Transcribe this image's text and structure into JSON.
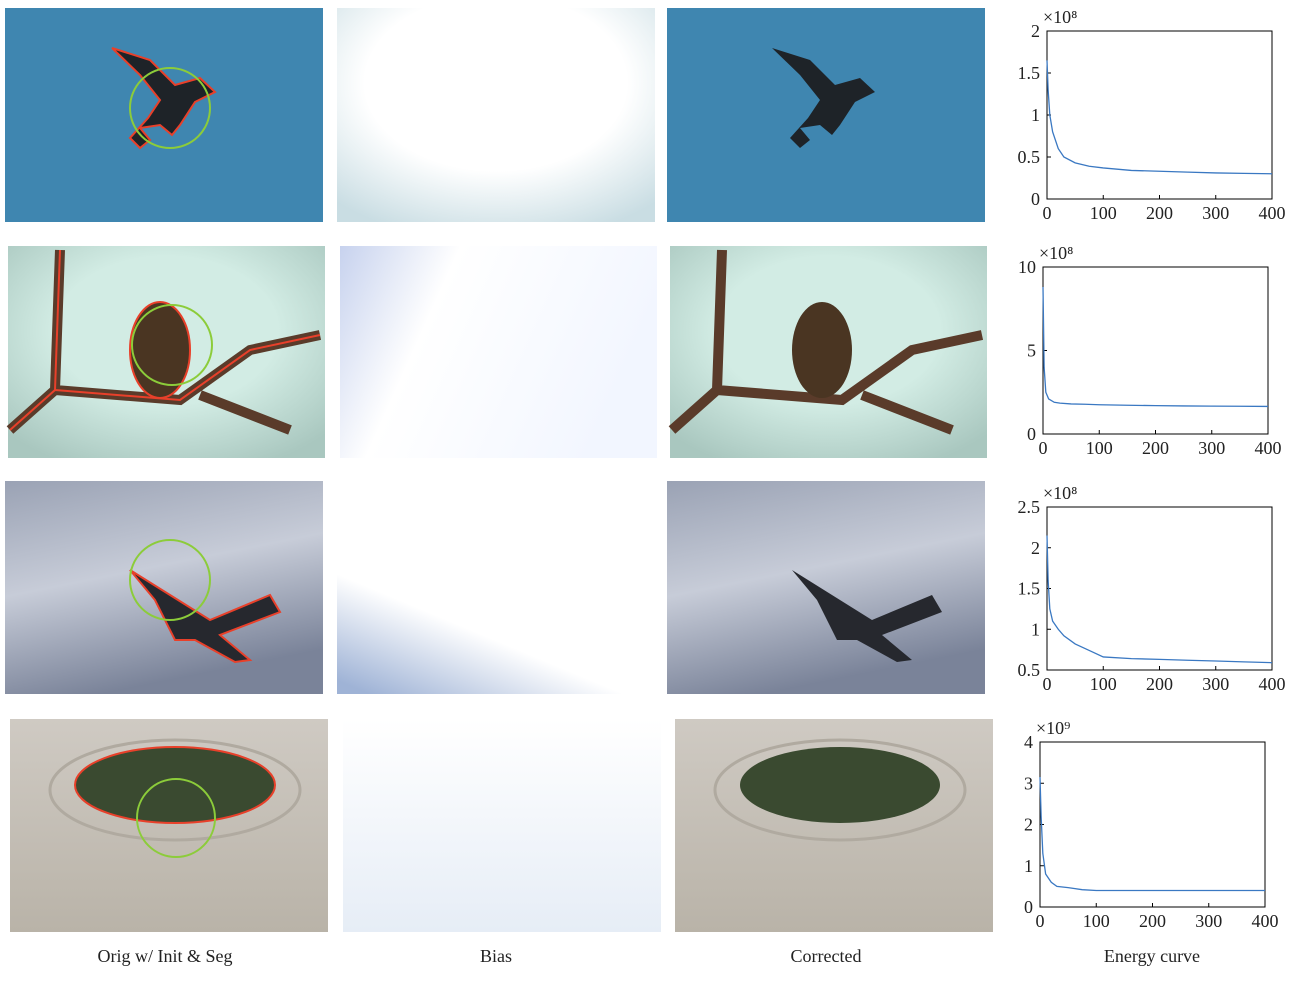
{
  "chart_data": [
    {
      "type": "line",
      "scale_label": "×10⁸",
      "color": "#3a78c2",
      "x": [
        0,
        2,
        5,
        10,
        20,
        30,
        50,
        75,
        100,
        150,
        200,
        250,
        300,
        350,
        400
      ],
      "values": [
        1.65,
        1.3,
        1.0,
        0.8,
        0.6,
        0.5,
        0.43,
        0.39,
        0.37,
        0.34,
        0.33,
        0.32,
        0.31,
        0.305,
        0.3
      ],
      "xlim": [
        0,
        400
      ],
      "xticks": [
        0,
        100,
        200,
        300,
        400
      ],
      "ylim": [
        0,
        2
      ],
      "yticks": [
        0,
        0.5,
        1,
        1.5,
        2
      ]
    },
    {
      "type": "line",
      "scale_label": "×10⁸",
      "color": "#3a78c2",
      "x": [
        0,
        2,
        5,
        10,
        20,
        30,
        50,
        75,
        100,
        150,
        200,
        250,
        300,
        350,
        400
      ],
      "values": [
        8.8,
        4,
        2.5,
        2.1,
        1.9,
        1.85,
        1.8,
        1.78,
        1.75,
        1.72,
        1.7,
        1.68,
        1.67,
        1.66,
        1.65
      ],
      "xlim": [
        0,
        400
      ],
      "xticks": [
        0,
        100,
        200,
        300,
        400
      ],
      "ylim": [
        0,
        10
      ],
      "yticks": [
        0,
        5,
        10
      ]
    },
    {
      "type": "line",
      "scale_label": "×10⁸",
      "color": "#3a78c2",
      "x": [
        0,
        2,
        5,
        10,
        20,
        30,
        50,
        75,
        100,
        150,
        200,
        250,
        300,
        350,
        400
      ],
      "values": [
        2.15,
        1.6,
        1.25,
        1.1,
        1.0,
        0.92,
        0.82,
        0.74,
        0.66,
        0.64,
        0.63,
        0.62,
        0.61,
        0.6,
        0.59
      ],
      "xlim": [
        0,
        400
      ],
      "xticks": [
        0,
        100,
        200,
        300,
        400
      ],
      "ylim": [
        0.5,
        2.5
      ],
      "yticks": [
        0.5,
        1,
        1.5,
        2,
        2.5
      ]
    },
    {
      "type": "line",
      "scale_label": "×10⁹",
      "color": "#3a78c2",
      "x": [
        0,
        2,
        5,
        10,
        20,
        30,
        50,
        75,
        100,
        150,
        200,
        250,
        300,
        350,
        400
      ],
      "values": [
        3.15,
        2.2,
        1.3,
        0.8,
        0.6,
        0.5,
        0.47,
        0.42,
        0.4,
        0.4,
        0.4,
        0.4,
        0.4,
        0.4,
        0.4
      ],
      "xlim": [
        0,
        400
      ],
      "xticks": [
        0,
        100,
        200,
        300,
        400
      ],
      "ylim": [
        0,
        4
      ],
      "yticks": [
        0,
        1,
        2,
        3,
        4
      ]
    }
  ],
  "column_labels": [
    "Orig w/ Init & Seg",
    "Bias",
    "Corrected",
    "Energy curve"
  ]
}
